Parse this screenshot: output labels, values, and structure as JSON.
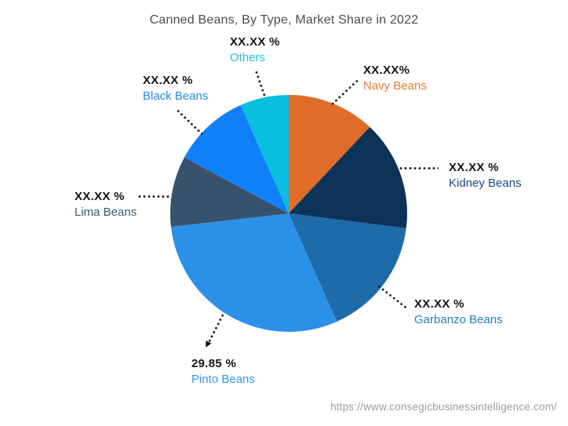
{
  "title": "Canned Beans, By Type, Market Share in 2022",
  "source_url": "https://www.consegicbusinessintelligence.com/",
  "chart_data": {
    "type": "pie",
    "title": "Canned Beans, By Type, Market Share in 2022",
    "start_angle_deg": 0,
    "direction": "clockwise",
    "legend_position": "none",
    "note": "All slice values are masked as XX.XX % placeholders except Pinto Beans (29.85 %); value_pct_est is estimated from arc angles",
    "slices": [
      {
        "label": "Navy Beans",
        "display_value": "XX.XX%",
        "value_pct_est": 12.0,
        "color": "#E06C2A",
        "label_color": "#E87A35"
      },
      {
        "label": "Kidney Beans",
        "display_value": "XX.XX %",
        "value_pct_est": 15.0,
        "color": "#0D3359",
        "label_color": "#174A80"
      },
      {
        "label": "Garbanzo Beans",
        "display_value": "XX.XX %",
        "value_pct_est": 16.35,
        "color": "#1D6BA9",
        "label_color": "#2979BE"
      },
      {
        "label": "Pinto Beans",
        "display_value": "29.85 %",
        "value_pct_est": 29.85,
        "color": "#2B90E8",
        "label_color": "#2E95F3"
      },
      {
        "label": "Lima Beans",
        "display_value": "XX.XX %",
        "value_pct_est": 9.65,
        "color": "#38526D",
        "label_color": "#3E5670"
      },
      {
        "label": "Black Beans",
        "display_value": "XX.XX %",
        "value_pct_est": 10.5,
        "color": "#1080F8",
        "label_color": "#2388F2"
      },
      {
        "label": "Others",
        "display_value": "XX.XX %",
        "value_pct_est": 6.65,
        "color": "#08BFE0",
        "label_color": "#20BEE6"
      }
    ]
  }
}
